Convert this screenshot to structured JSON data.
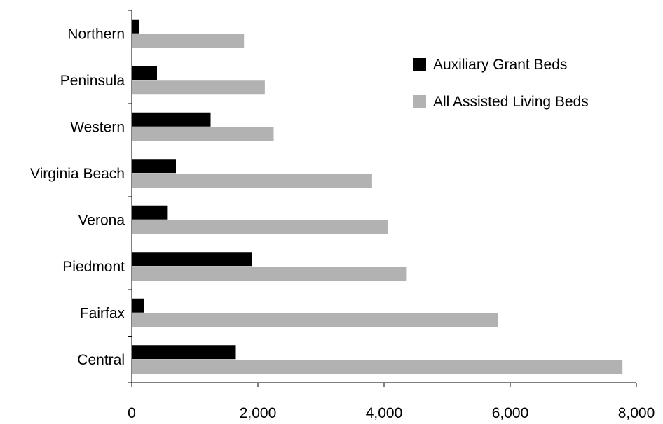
{
  "chart_data": {
    "type": "bar",
    "orientation": "horizontal",
    "categories": [
      "Northern",
      "Peninsula",
      "Western",
      "Virginia Beach",
      "Verona",
      "Piedmont",
      "Fairfax",
      "Central"
    ],
    "series": [
      {
        "name": "Auxiliary Grant Beds",
        "color": "#000000",
        "values": [
          120,
          400,
          1250,
          700,
          560,
          1900,
          200,
          1650
        ]
      },
      {
        "name": "All Assisted Living Beds",
        "color": "#b2b2b2",
        "values": [
          1780,
          2110,
          2250,
          3810,
          4060,
          4360,
          5810,
          7780
        ]
      }
    ],
    "xlim": [
      0,
      8000
    ],
    "xticks": [
      0,
      2000,
      4000,
      6000,
      8000
    ],
    "xtick_labels": [
      "0",
      "2,000",
      "4,000",
      "6,000",
      "8,000"
    ],
    "grid": false,
    "legend_position": "top-right",
    "title": "",
    "xlabel": "",
    "ylabel": ""
  }
}
